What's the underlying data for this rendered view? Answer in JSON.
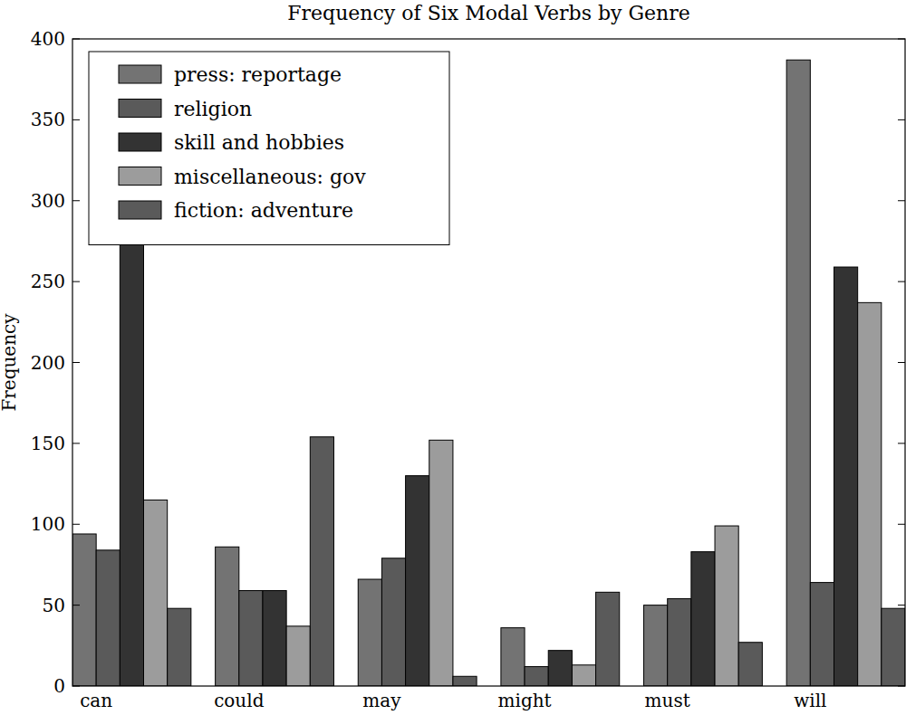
{
  "chart_data": {
    "type": "bar",
    "title": "Frequency of Six Modal Verbs by Genre",
    "y_label": "Frequency",
    "categories": [
      "can",
      "could",
      "may",
      "might",
      "must",
      "will"
    ],
    "series": [
      {
        "name": "press: reportage",
        "color": "#737373",
        "values": [
          94,
          86,
          66,
          36,
          50,
          387
        ]
      },
      {
        "name": "religion",
        "color": "#5a5a5a",
        "values": [
          84,
          59,
          79,
          12,
          54,
          64
        ]
      },
      {
        "name": "skill and hobbies",
        "color": "#333333",
        "values": [
          273,
          59,
          130,
          22,
          83,
          259
        ]
      },
      {
        "name": "miscellaneous: gov",
        "color": "#9c9c9c",
        "values": [
          115,
          37,
          152,
          13,
          99,
          237
        ]
      },
      {
        "name": "fiction: adventure",
        "color": "#5a5a5a",
        "values": [
          48,
          154,
          6,
          58,
          27,
          48
        ]
      }
    ],
    "ylim": [
      0,
      400
    ],
    "yticks": [
      0,
      50,
      100,
      150,
      200,
      250,
      300,
      350,
      400
    ],
    "grid": false,
    "legend": "upper left"
  }
}
